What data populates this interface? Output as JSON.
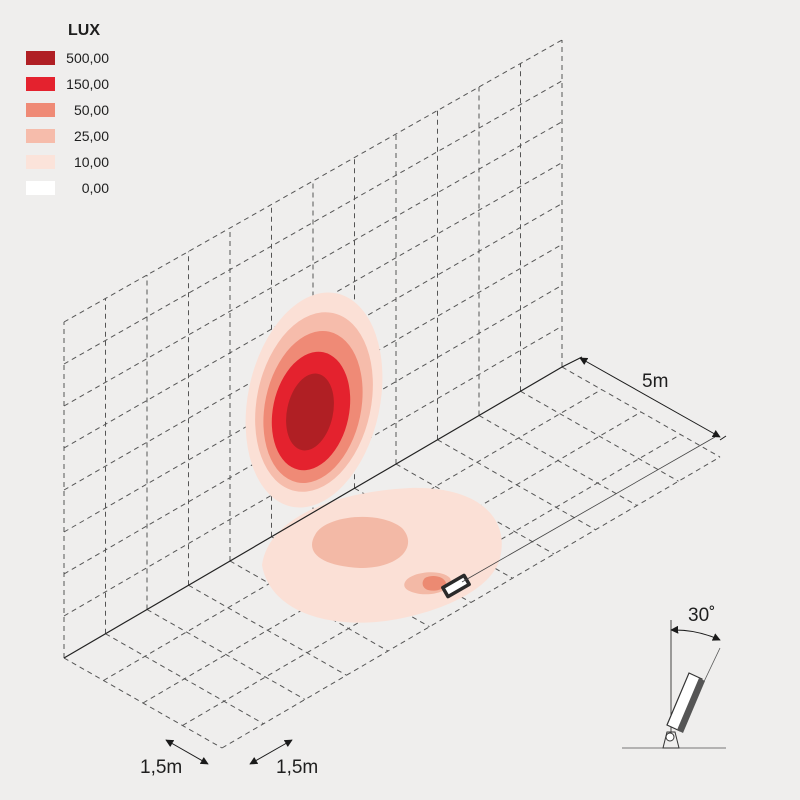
{
  "legend": {
    "title": "LUX",
    "items": [
      {
        "label": "500,00",
        "color": "#b01f24"
      },
      {
        "label": "150,00",
        "color": "#e4222e"
      },
      {
        "label": "50,00",
        "color": "#ef8a76"
      },
      {
        "label": "25,00",
        "color": "#f6bcab"
      },
      {
        "label": "10,00",
        "color": "#fbe3da"
      },
      {
        "label": "0,00",
        "color": "#ffffff"
      }
    ]
  },
  "dimensions": {
    "depth": "5m",
    "grid_a": "1,5m",
    "grid_b": "1,5m",
    "tilt_angle": "30˚"
  },
  "colors": {
    "background": "#efeeed",
    "grid": "#555555",
    "fixture": "#222222"
  }
}
